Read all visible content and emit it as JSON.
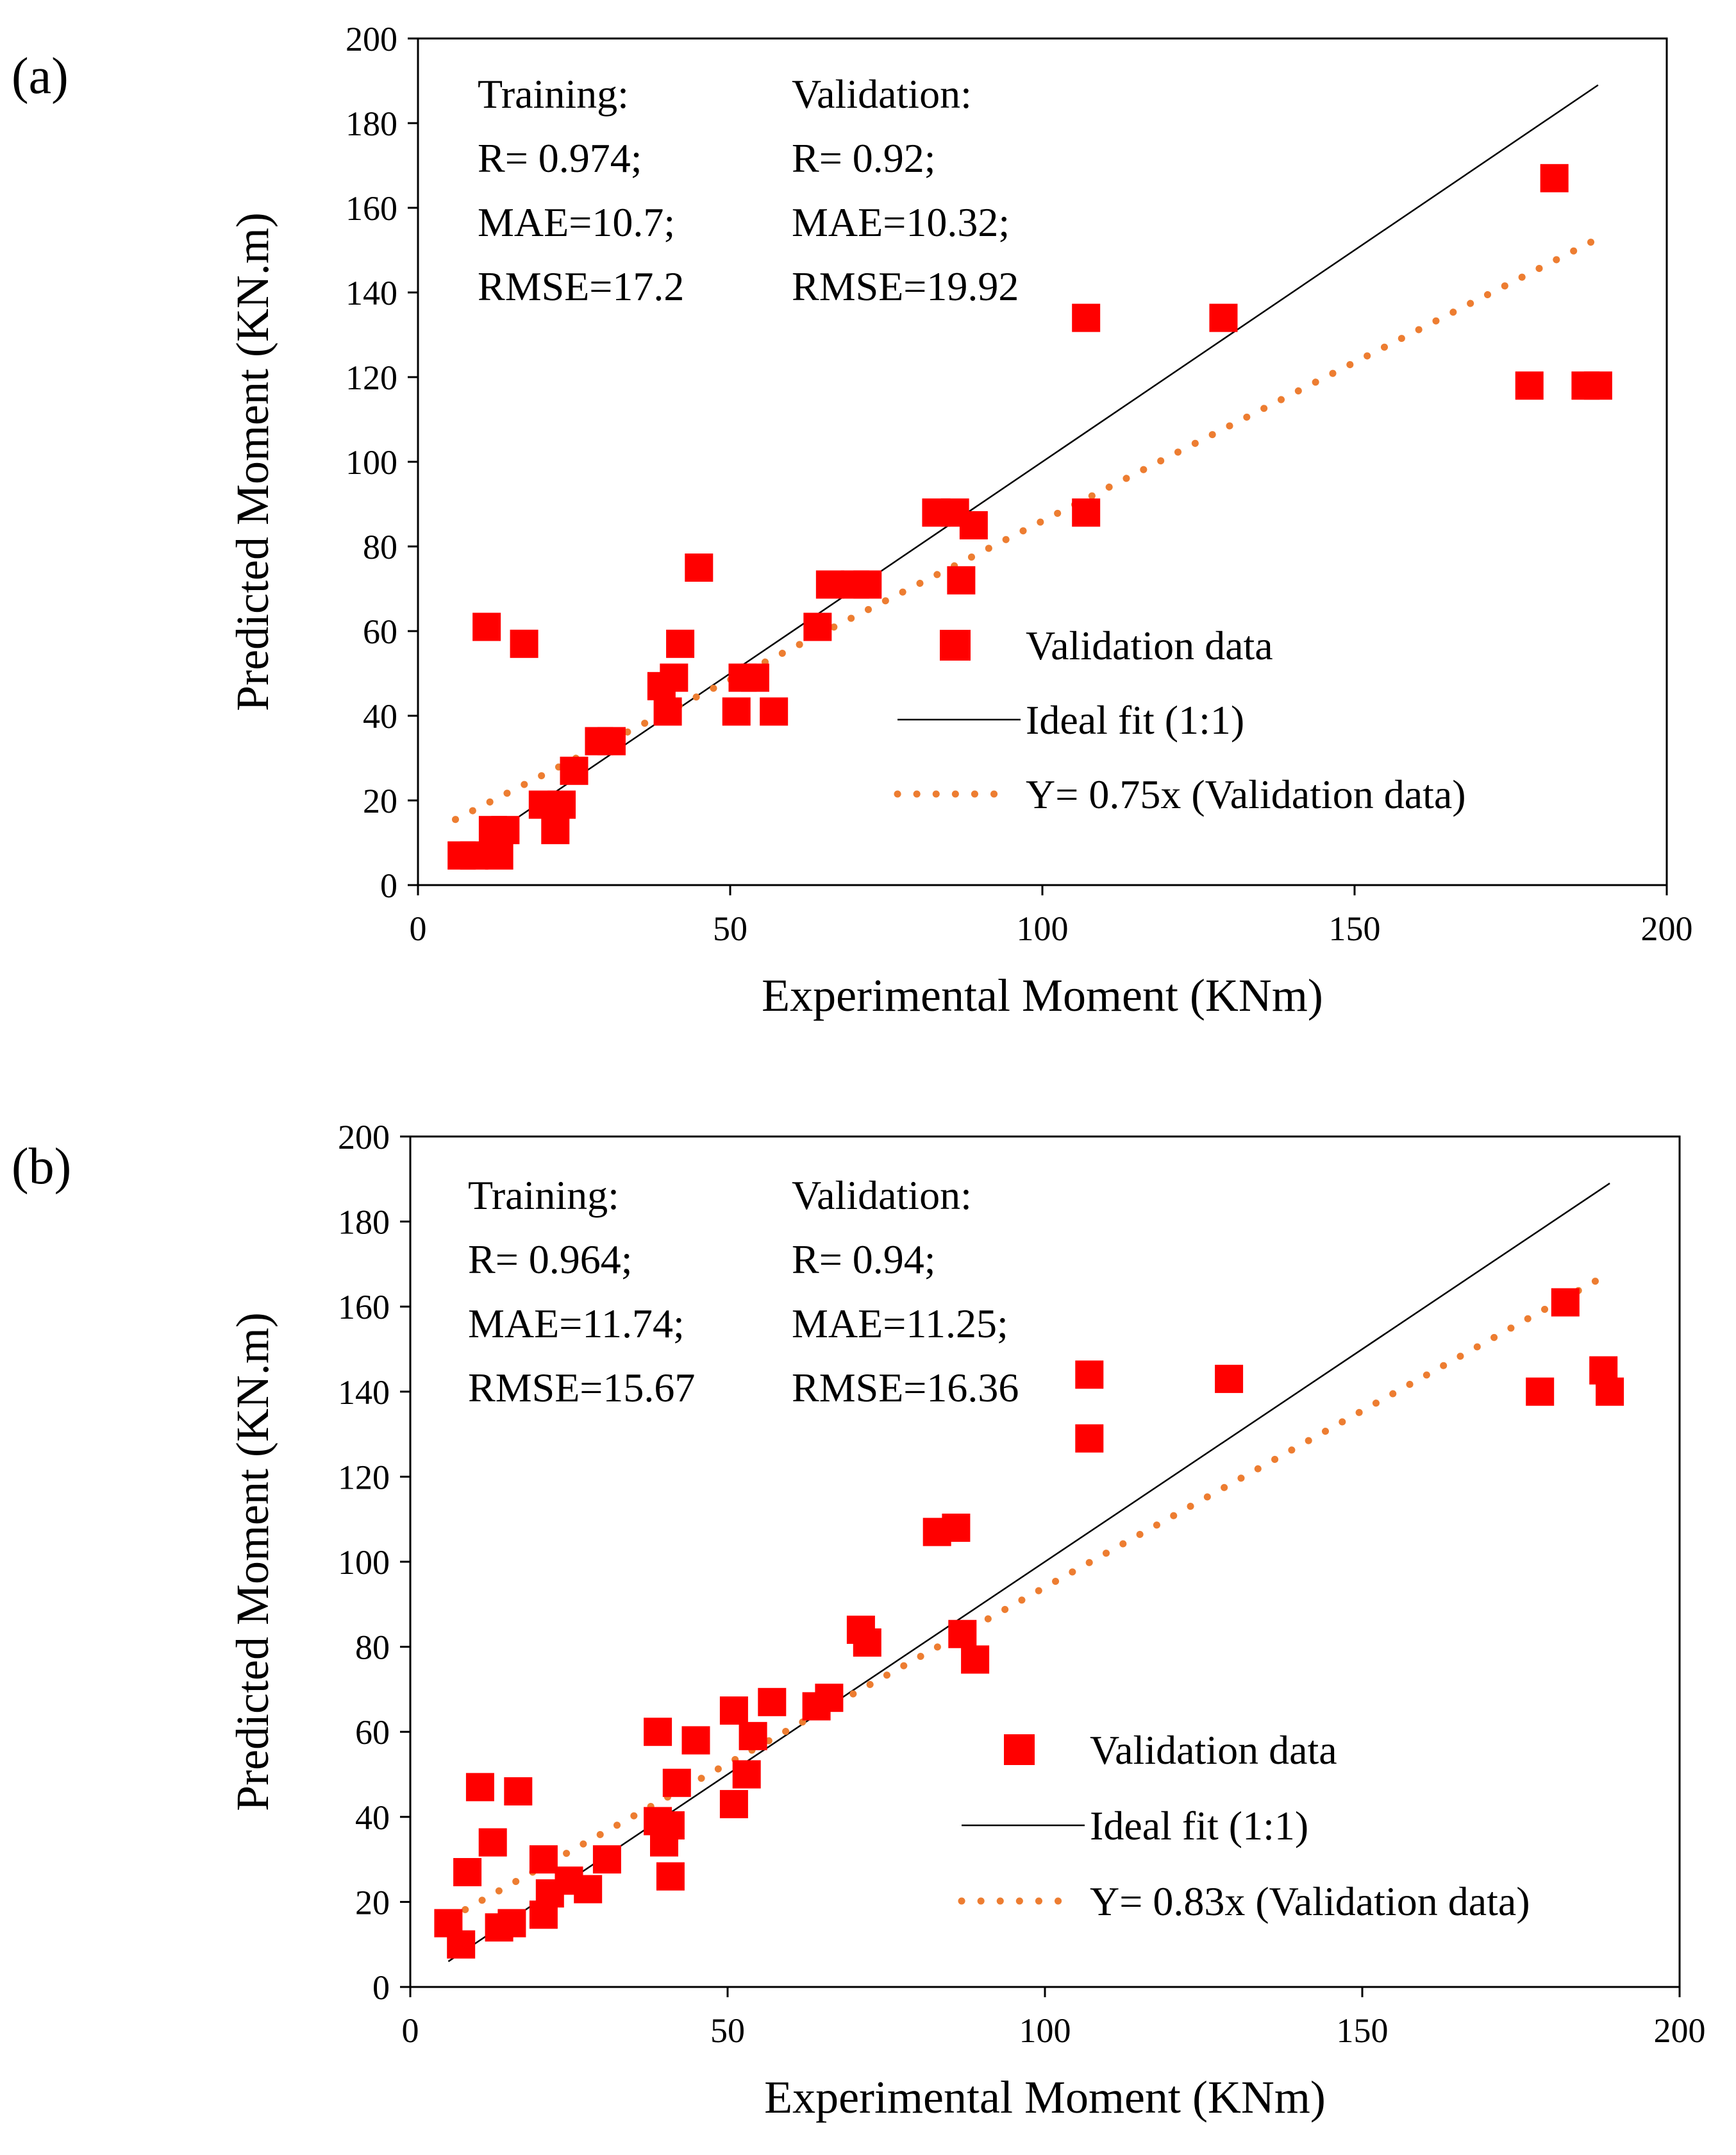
{
  "colors": {
    "points": "#ff0000",
    "ideal": "#000000",
    "trend": "#ed7d31"
  },
  "chart_data": [
    {
      "type": "scatter",
      "panel_label": "(a)",
      "xlabel": "Experimental Moment (KNm)",
      "ylabel": "Predicted Moment (KN.m)",
      "xlim": [
        0,
        200
      ],
      "ylim": [
        0,
        200
      ],
      "xticks": [
        "0",
        "50",
        "100",
        "150",
        "200"
      ],
      "yticks": [
        "0",
        "20",
        "40",
        "60",
        "80",
        "100",
        "120",
        "140",
        "160",
        "180",
        "200"
      ],
      "grid": false,
      "legend_position": "bottom-right",
      "stats": {
        "training": [
          "Training:",
          "R= 0.974;",
          "MAE=10.7;",
          "RMSE=17.2"
        ],
        "validation": [
          "Validation:",
          "R= 0.92;",
          "MAE=10.32;",
          "RMSE=19.92"
        ]
      },
      "legend": [
        "Validation data",
        "Ideal fit (1:1)",
        "Y= 0.75x (Validation data)"
      ],
      "ideal_line": {
        "x": [
          6,
          189
        ],
        "y": [
          6,
          189
        ]
      },
      "trend_line": {
        "slope": 0.75,
        "intercept": 11,
        "x": [
          6,
          189
        ]
      },
      "series": [
        {
          "x": [
            7,
            9,
            13,
            11,
            14,
            12,
            17,
            20,
            23,
            22,
            25,
            29,
            31,
            39,
            41,
            42,
            40,
            45,
            52,
            51,
            54,
            57,
            64,
            66,
            70,
            72,
            83,
            86,
            89,
            87,
            107,
            107,
            129,
            178,
            182,
            187,
            189
          ],
          "y": [
            7,
            7,
            7,
            61,
            13,
            13,
            57,
            19,
            19,
            13,
            27,
            34,
            34,
            47,
            49,
            57,
            41,
            75,
            49,
            41,
            49,
            41,
            61,
            71,
            71,
            71,
            88,
            88,
            85,
            72,
            88,
            134,
            134,
            118,
            167,
            118,
            118
          ]
        }
      ]
    },
    {
      "type": "scatter",
      "panel_label": "(b)",
      "xlabel": "Experimental Moment (KNm)",
      "ylabel": "Predicted Moment (KN.m)",
      "xlim": [
        0,
        200
      ],
      "ylim": [
        0,
        200
      ],
      "xticks": [
        "0",
        "50",
        "100",
        "150",
        "200"
      ],
      "yticks": [
        "0",
        "20",
        "40",
        "60",
        "80",
        "100",
        "120",
        "140",
        "160",
        "180",
        "200"
      ],
      "grid": false,
      "legend_position": "bottom-right",
      "stats": {
        "training": [
          "Training:",
          "R= 0.964;",
          "MAE=11.74;",
          "RMSE=15.67"
        ],
        "validation": [
          "Validation:",
          "R= 0.94;",
          "MAE=11.25;",
          "RMSE=16.36"
        ]
      },
      "legend": [
        "Validation data",
        "Ideal fit (1:1)",
        "Y= 0.83x (Validation data)"
      ],
      "ideal_line": {
        "x": [
          6,
          189
        ],
        "y": [
          6,
          189
        ]
      },
      "trend_line": {
        "slope": 0.83,
        "intercept": 11,
        "x": [
          6,
          189
        ]
      },
      "series": [
        {
          "x": [
            6,
            8,
            9,
            11,
            13,
            14,
            16,
            17,
            21,
            21,
            22,
            25,
            28,
            31,
            39,
            39,
            40,
            41,
            41,
            42,
            45,
            51,
            51,
            53,
            54,
            57,
            64,
            66,
            71,
            72,
            83,
            86,
            87,
            89,
            107,
            107,
            129,
            178,
            182,
            188,
            189
          ],
          "y": [
            15,
            10,
            27,
            47,
            34,
            14,
            15,
            46,
            17,
            30,
            22,
            25,
            23,
            30,
            60,
            39,
            34,
            26,
            38,
            48,
            58,
            65,
            43,
            50,
            59,
            67,
            66,
            68,
            84,
            81,
            107,
            108,
            83,
            77,
            144,
            129,
            143,
            140,
            161,
            145,
            140
          ]
        }
      ]
    }
  ]
}
